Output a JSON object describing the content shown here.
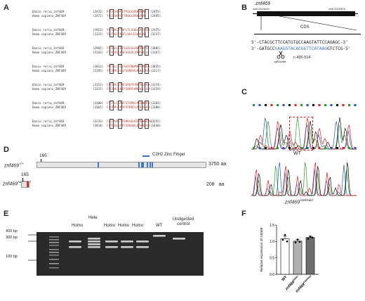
{
  "panels": {
    "A": "A",
    "B": "B",
    "C": "C",
    "D": "D",
    "E": "E",
    "F": "F"
  },
  "alignment": {
    "blocks": [
      {
        "rows": [
          {
            "species": "Danio rerio_znf469",
            "start": "(2432)",
            "seq": "PQCCGRMFSTPGGLRRHRKMH",
            "end": "(2455)"
          },
          {
            "species": "Homo sapiens_ZNF469",
            "start": "(2472)",
            "seq": "YPCCGKRFTTRQGLRRHLRVH",
            "end": "(2495)"
          }
        ]
      },
      {
        "rows": [
          {
            "species": "Danio rerio_znf469",
            "start": "(2953)",
            "seq": "YVCRKCTTNFLTLGHKLDHFRVH",
            "end": "(2975)"
          },
          {
            "species": "Homo sapiens_ZNF469",
            "start": "(3115)",
            "seq": "YVCSKCPRRFLSKLIGHRLVH",
            "end": "(3137)"
          }
        ]
      },
      {
        "rows": [
          {
            "species": "Danio rerio_znf469",
            "start": "(2981)",
            "seq": "FTCKECGRFSGEEQLHRHRKVH",
            "end": "(3005)"
          },
          {
            "species": "Homo sapiens_ZNF469",
            "start": "(3143)",
            "seq": "FTCDQCGRHFSEEQLVRTHRLH",
            "end": "(3167)"
          }
        ]
      },
      {
        "rows": [
          {
            "species": "Danio rerio_znf469",
            "start": "(3013)",
            "seq": "YNCQLCGCLSEESNWMKFHMRRH",
            "end": "(3035)"
          },
          {
            "species": "Homo sapiens_ZNF469",
            "start": "(3195)",
            "seq": "YSCHRCGCLFSDNSVLMQHLRVH",
            "end": "(3217)"
          }
        ]
      },
      {
        "rows": [
          {
            "species": "Danio rerio_znf469",
            "start": "(3152)",
            "seq": "FACSRCGIXFSRQYFMKFHLRRH",
            "end": "(3174)"
          },
          {
            "species": "Homo sapiens_ZNF469",
            "start": "(3337)",
            "seq": "FSCGRCGRTFSRKFHMKRHLLRH",
            "end": "(3359)"
          }
        ]
      },
      {
        "rows": [
          {
            "species": "Danio rerio_znf469",
            "start": "(3180)",
            "seq": "FTCSLCGRVFSTQRKLMGVHRRH",
            "end": "(3203)"
          },
          {
            "species": "Homo sapiens_ZNF469",
            "start": "(3365)",
            "seq": "FACNPCRRPFVPRRFLMRLAGRH",
            "end": "(3388)"
          }
        ]
      },
      {
        "rows": [
          {
            "species": "Danio rerio_znf469",
            "start": "(3233)",
            "seq": "FACSKRSTFSRKAEHGFRNHWRRH",
            "end": "(3255)"
          },
          {
            "species": "Homo sapiens_ZNF469",
            "start": "(3418)",
            "seq": "FACRQCSFTFSRKGWLQFHRRVH",
            "end": "(3440)"
          }
        ]
      }
    ]
  },
  "gene_b": {
    "name": "znf469",
    "chr_left": "chr6:31128324",
    "chr_right": "chr6:31109576",
    "cds": "CDS",
    "seq_top": "5'-CTACGCTTCCATGTGCCAAGTATTCCAGAGC-3'",
    "seq_bot_a": "3'-GATGCC",
    "seq_bot_b": "GAAGGTACACGGTTCATAAG",
    "seq_bot_c": "GTCTCG-5'",
    "sgrna_label": "sgRNA site",
    "range": "c.495-514"
  },
  "chromatogram": {
    "wt_label": "WT",
    "mut_label": "znf469",
    "mut_sup": "Adel/4del"
  },
  "domain_d": {
    "wt_start": "165",
    "wt_label": "znf469",
    "wt_sup": "+/+",
    "wt_len": "3750",
    "aa": "aa",
    "mut_start": "165",
    "mut_label": "znf469",
    "mut_sup": "Adel/4del",
    "mut_len": "208",
    "aa2": "aa",
    "legend": "C2H2 Zinc Finger",
    "accent": "#3b76d6",
    "mut_accent": "#c0392b"
  },
  "gel": {
    "lanes": [
      "Homo",
      "Hete",
      "Homo",
      "Homo",
      "Homo",
      "WT",
      "Undigested control"
    ],
    "markers": [
      "400 bp",
      "300 bp",
      "100 bp"
    ]
  },
  "chart_data": {
    "type": "bar",
    "title": "",
    "ylabel": "Relative expression of znf469",
    "categories": [
      "WT",
      "znf469^Adel/+",
      "znf469^Adel/4del"
    ],
    "values": [
      1.08,
      1.01,
      1.12
    ],
    "errors": [
      0.08,
      0.05,
      0.04
    ],
    "points": [
      [
        1.05,
        1.2,
        1.0
      ],
      [
        0.97,
        1.06,
        0.99
      ],
      [
        1.08,
        1.15,
        1.12
      ]
    ],
    "ylim": [
      0,
      1.5
    ],
    "yticks": [
      "0.0",
      "0.5",
      "1.0",
      "1.5"
    ],
    "xlabels": [
      "WT",
      "znf469",
      "znf469"
    ],
    "xsups": [
      "Adel/+",
      "Adel/4del"
    ],
    "colors": [
      "#ffffff",
      "#b0b0b0",
      "#6e6e6e"
    ]
  }
}
